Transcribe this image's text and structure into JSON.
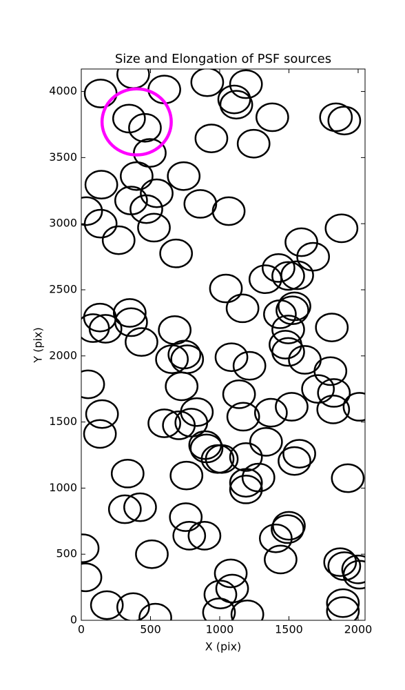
{
  "chart_data": {
    "type": "scatter",
    "title": "Size and Elongation of PSF sources",
    "xlabel": "X (pix)",
    "ylabel": "Y (pix)",
    "xlim": [
      0,
      2050
    ],
    "ylim": [
      0,
      4170
    ],
    "xticks": [
      0,
      500,
      1000,
      1500,
      2000
    ],
    "yticks": [
      0,
      500,
      1000,
      1500,
      2000,
      2500,
      3000,
      3500,
      4000
    ],
    "series": [
      {
        "color": "#000000",
        "marker_width": 230,
        "marker_height": 210,
        "x": [
          140,
          375,
          600,
          910,
          1190,
          1105,
          1120,
          1380,
          1840,
          1900,
          345,
          460,
          495,
          940,
          1245,
          145,
          400,
          545,
          740,
          360,
          470,
          860,
          1065,
          35,
          140,
          525,
          270,
          685,
          1880,
          1590,
          1675,
          1425,
          1330,
          1495,
          1560,
          1045,
          1165,
          1540,
          1525,
          1435,
          1495,
          1810,
          350,
          360,
          135,
          85,
          175,
          435,
          675,
          745,
          655,
          765,
          1085,
          1215,
          1475,
          1495,
          1615,
          1800,
          50,
          725,
          1710,
          1825,
          2010,
          1140,
          1520,
          1820,
          150,
          1370,
          1170,
          835,
          600,
          705,
          795,
          135,
          895,
          905,
          985,
          1015,
          1335,
          1190,
          1575,
          1540,
          1280,
          1190,
          1190,
          335,
          760,
          1925,
          315,
          425,
          755,
          780,
          890,
          1500,
          1490,
          1405,
          10,
          510,
          1440,
          1870,
          1900,
          2000,
          2010,
          30,
          1080,
          1090,
          1005,
          185,
          375,
          535,
          995,
          1200,
          1890,
          1890
        ],
        "y": [
          3985,
          4130,
          4015,
          4070,
          4055,
          3940,
          3900,
          3805,
          3805,
          3780,
          3795,
          3725,
          3535,
          3645,
          3605,
          3295,
          3360,
          3230,
          3360,
          3175,
          3110,
          3150,
          3095,
          3095,
          3000,
          2970,
          2875,
          2775,
          2965,
          2860,
          2750,
          2665,
          2580,
          2605,
          2610,
          2510,
          2360,
          2375,
          2345,
          2315,
          2200,
          2215,
          2325,
          2255,
          2290,
          2210,
          2205,
          2105,
          2195,
          2010,
          1975,
          1975,
          1990,
          1925,
          2085,
          2030,
          1970,
          1885,
          1785,
          1770,
          1750,
          1720,
          1615,
          1710,
          1615,
          1595,
          1560,
          1570,
          1540,
          1575,
          1490,
          1475,
          1495,
          1410,
          1325,
          1300,
          1220,
          1220,
          1350,
          1235,
          1260,
          1205,
          1080,
          1040,
          990,
          1110,
          1095,
          1075,
          840,
          855,
          780,
          640,
          640,
          715,
          690,
          620,
          545,
          500,
          460,
          440,
          410,
          385,
          345,
          325,
          355,
          240,
          195,
          115,
          100,
          20,
          60,
          45,
          130,
          70
        ]
      },
      {
        "color": "#ff00ff",
        "marker_width": 500,
        "marker_height": 500,
        "x": [
          400
        ],
        "y": [
          3770
        ]
      }
    ]
  }
}
